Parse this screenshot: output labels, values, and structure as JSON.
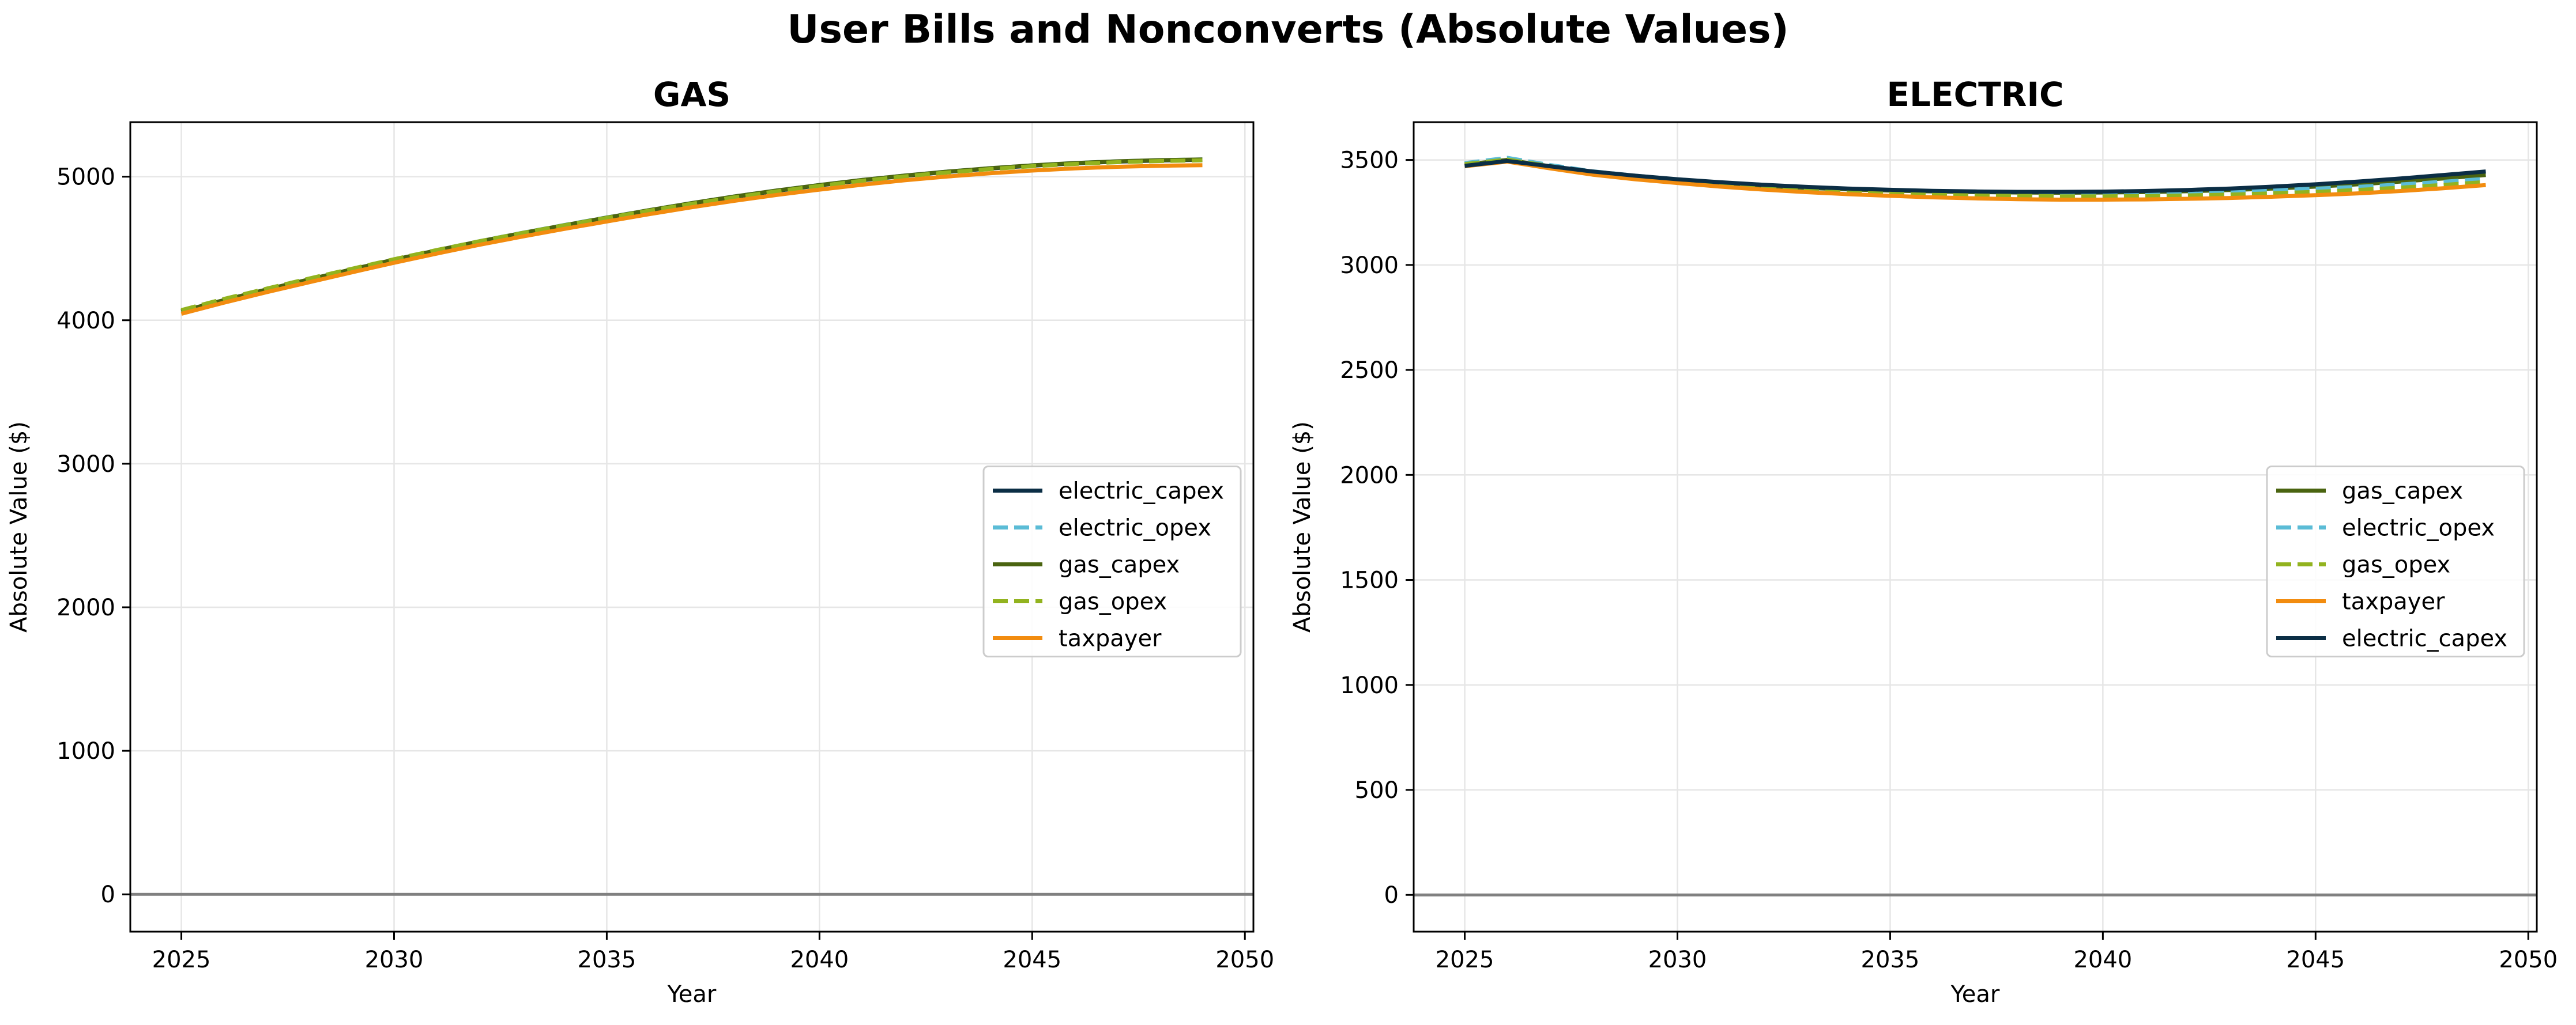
{
  "figure": {
    "title": "User Bills and Nonconverts (Absolute Values)"
  },
  "colors": {
    "electric_capex": "#0b2e45",
    "electric_opex": "#5bbcd6",
    "gas_capex": "#4a6410",
    "gas_opex": "#92b31f",
    "taxpayer": "#f28c0f",
    "zero_line": "#808080",
    "grid": "#e6e6e6"
  },
  "chart_data": [
    {
      "type": "line",
      "title": "GAS",
      "xlabel": "Year",
      "ylabel": "Absolute Value ($)",
      "xlim": [
        2023.8,
        2050.2
      ],
      "ylim": [
        -260,
        5380
      ],
      "xticks": [
        2025,
        2030,
        2035,
        2040,
        2045,
        2050
      ],
      "yticks": [
        0,
        1000,
        2000,
        3000,
        4000,
        5000
      ],
      "grid": true,
      "zero_line": true,
      "legend_position": "center-right",
      "legend_order": [
        "electric_capex",
        "electric_opex",
        "gas_capex",
        "gas_opex",
        "taxpayer"
      ],
      "x": [
        2025,
        2026,
        2027,
        2028,
        2029,
        2030,
        2031,
        2032,
        2033,
        2034,
        2035,
        2036,
        2037,
        2038,
        2039,
        2040,
        2041,
        2042,
        2043,
        2044,
        2045,
        2046,
        2047,
        2048,
        2049
      ],
      "series": [
        {
          "name": "electric_capex",
          "style": "solid",
          "values": [
            4060,
            4138,
            4212,
            4282,
            4352,
            4420,
            4485,
            4547,
            4605,
            4660,
            4713,
            4765,
            4814,
            4860,
            4902,
            4940,
            4975,
            5006,
            5033,
            5057,
            5077,
            5093,
            5105,
            5113,
            5118
          ]
        },
        {
          "name": "electric_opex",
          "style": "dashed",
          "values": [
            4065,
            4143,
            4217,
            4286,
            4356,
            4423,
            4488,
            4550,
            4608,
            4663,
            4716,
            4767,
            4816,
            4862,
            4904,
            4942,
            4977,
            5008,
            5035,
            5059,
            5079,
            5095,
            5107,
            5115,
            5120
          ]
        },
        {
          "name": "gas_capex",
          "style": "solid",
          "values": [
            4062,
            4140,
            4214,
            4284,
            4354,
            4422,
            4487,
            4549,
            4607,
            4662,
            4715,
            4767,
            4816,
            4862,
            4904,
            4942,
            4977,
            5008,
            5035,
            5059,
            5079,
            5095,
            5107,
            5115,
            5120
          ]
        },
        {
          "name": "gas_opex",
          "style": "dashed",
          "values": [
            4070,
            4148,
            4220,
            4290,
            4358,
            4425,
            4489,
            4550,
            4607,
            4661,
            4713,
            4763,
            4811,
            4856,
            4898,
            4936,
            4971,
            5002,
            5029,
            5053,
            5073,
            5089,
            5101,
            5109,
            5114
          ]
        },
        {
          "name": "taxpayer",
          "style": "solid",
          "values": [
            4045,
            4122,
            4195,
            4264,
            4333,
            4400,
            4464,
            4525,
            4582,
            4636,
            4688,
            4739,
            4787,
            4832,
            4873,
            4910,
            4944,
            4975,
            5001,
            5024,
            5043,
            5058,
            5069,
            5076,
            5080
          ]
        }
      ]
    },
    {
      "type": "line",
      "title": "ELECTRIC",
      "xlabel": "Year",
      "ylabel": "Absolute Value ($)",
      "xlim": [
        2023.8,
        2050.2
      ],
      "ylim": [
        -175,
        3680
      ],
      "xticks": [
        2025,
        2030,
        2035,
        2040,
        2045,
        2050
      ],
      "yticks": [
        0,
        500,
        1000,
        1500,
        2000,
        2500,
        3000,
        3500
      ],
      "grid": true,
      "zero_line": true,
      "legend_position": "center-right",
      "legend_order": [
        "gas_capex",
        "electric_opex",
        "gas_opex",
        "taxpayer",
        "electric_capex"
      ],
      "x": [
        2025,
        2026,
        2027,
        2028,
        2029,
        2030,
        2031,
        2032,
        2033,
        2034,
        2035,
        2036,
        2037,
        2038,
        2039,
        2040,
        2041,
        2042,
        2043,
        2044,
        2045,
        2046,
        2047,
        2048,
        2049
      ],
      "series": [
        {
          "name": "gas_capex",
          "style": "solid",
          "values": [
            3478,
            3500,
            3470,
            3442,
            3422,
            3405,
            3390,
            3377,
            3367,
            3360,
            3354,
            3350,
            3347,
            3345,
            3344,
            3345,
            3347,
            3351,
            3357,
            3364,
            3373,
            3384,
            3397,
            3412,
            3428
          ]
        },
        {
          "name": "electric_opex",
          "style": "dashed",
          "values": [
            3485,
            3510,
            3476,
            3446,
            3425,
            3407,
            3391,
            3378,
            3368,
            3361,
            3355,
            3350,
            3346,
            3343,
            3342,
            3342,
            3343,
            3346,
            3350,
            3356,
            3363,
            3372,
            3383,
            3396,
            3410
          ]
        },
        {
          "name": "gas_opex",
          "style": "dashed",
          "values": [
            3480,
            3502,
            3471,
            3440,
            3418,
            3400,
            3384,
            3370,
            3359,
            3350,
            3343,
            3337,
            3332,
            3329,
            3327,
            3327,
            3328,
            3331,
            3335,
            3341,
            3348,
            3357,
            3368,
            3381,
            3395
          ]
        },
        {
          "name": "taxpayer",
          "style": "solid",
          "values": [
            3470,
            3492,
            3460,
            3430,
            3408,
            3390,
            3373,
            3359,
            3347,
            3337,
            3329,
            3322,
            3317,
            3313,
            3311,
            3311,
            3312,
            3315,
            3319,
            3325,
            3332,
            3341,
            3352,
            3365,
            3380
          ]
        },
        {
          "name": "electric_capex",
          "style": "solid",
          "values": [
            3472,
            3495,
            3470,
            3445,
            3425,
            3408,
            3394,
            3382,
            3372,
            3364,
            3358,
            3353,
            3350,
            3348,
            3348,
            3349,
            3352,
            3357,
            3364,
            3373,
            3384,
            3397,
            3412,
            3428,
            3445
          ]
        }
      ]
    }
  ]
}
